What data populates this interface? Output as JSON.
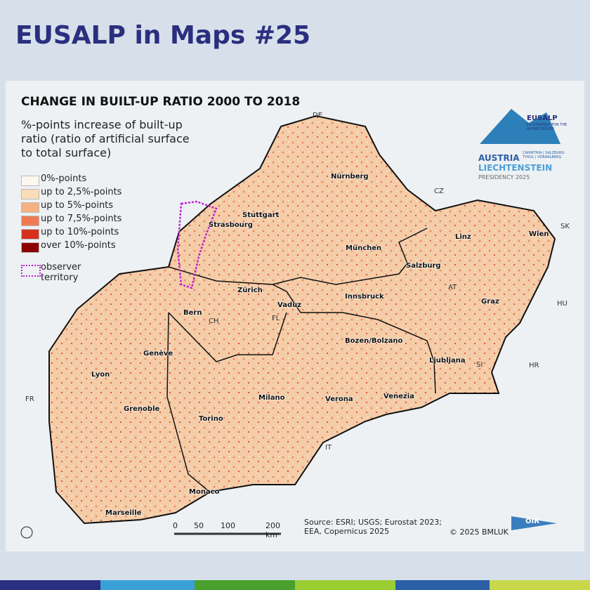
{
  "header": {
    "title": "EUSALP in Maps #25"
  },
  "map": {
    "title": "CHANGE IN BUILT-UP RATIO 2000 TO 2018",
    "subtitle": "%-points increase of built-up ratio (ratio of artificial surface to total surface)",
    "legend": [
      {
        "label": "0%-points",
        "color": "#fdf7f0"
      },
      {
        "label": "up to 2,5%-points",
        "color": "#fbdcb8"
      },
      {
        "label": "up to 5%-points",
        "color": "#f6b183"
      },
      {
        "label": "up to 7,5%-points",
        "color": "#ef7a52"
      },
      {
        "label": "up to 10%-points",
        "color": "#d7301f"
      },
      {
        "label": "over 10%-points",
        "color": "#8b0000"
      }
    ],
    "observer": "observer territory",
    "cities": [
      "Nürnberg",
      "Stuttgart",
      "Strasbourg",
      "München",
      "Linz",
      "Wien",
      "Salzburg",
      "Zürich",
      "Vaduz",
      "Innsbruck",
      "Bern",
      "Graz",
      "Genève",
      "Bozen/Bolzano",
      "Ljubljana",
      "Lyon",
      "Grenoble",
      "Milano",
      "Verona",
      "Venezia",
      "Torino",
      "Monaco",
      "Marseille"
    ],
    "countries": [
      "DE",
      "CZ",
      "SK",
      "AT",
      "HU",
      "CH",
      "FL",
      "SI",
      "HR",
      "FR",
      "IT"
    ],
    "scale": [
      "0",
      "50",
      "100",
      "200 km"
    ],
    "source": "Source: ESRI; USGS; Eurostat 2023; EEA, Copernicus 2025",
    "copyright": "© 2025 BMLUK",
    "logo": {
      "name": "EUSALP",
      "tagline": "EU STRATEGY FOR THE ALPINE REGION",
      "country1": "AUSTRIA",
      "country2": "LIECHTENSTEIN",
      "regions": "CARINTHIA | SALZBURG TYROL | VORARLBERG",
      "presidency": "PRESIDENCY 2025"
    },
    "institute": "ÖIR"
  }
}
